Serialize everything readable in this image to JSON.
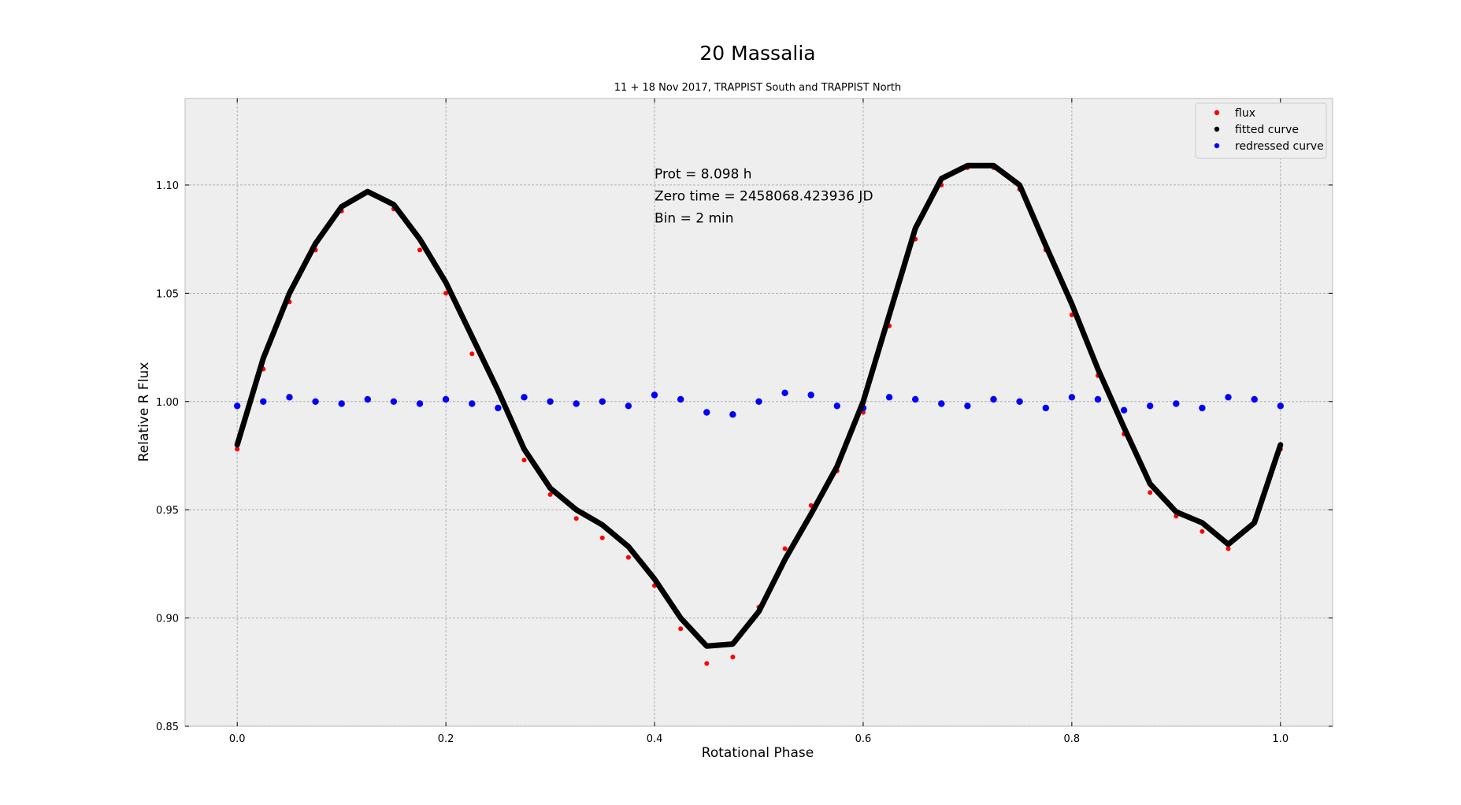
{
  "chart_data": {
    "type": "scatter",
    "title": "20 Massalia",
    "subtitle": "11 + 18 Nov 2017, TRAPPIST South and TRAPPIST North",
    "xlabel": "Rotational Phase",
    "ylabel": "Relative R Flux",
    "xlim": [
      -0.05,
      1.05
    ],
    "ylim": [
      0.85,
      1.14
    ],
    "xticks": [
      "0.0",
      "0.2",
      "0.4",
      "0.6",
      "0.8",
      "1.0"
    ],
    "xtick_values": [
      0.0,
      0.2,
      0.4,
      0.6,
      0.8,
      1.0
    ],
    "yticks": [
      "0.85",
      "0.90",
      "0.95",
      "1.00",
      "1.05",
      "1.10"
    ],
    "ytick_values": [
      0.85,
      0.9,
      0.95,
      1.0,
      1.05,
      1.1
    ],
    "grid": true,
    "legend_position": "top-right",
    "annotations": [
      "Prot = 8.098 h",
      "Zero time = 2458068.423936 JD",
      "Bin = 2 min"
    ],
    "annotation_anchor": {
      "x": 0.4,
      "y": 1.103
    },
    "colors": {
      "flux": "#ff0000",
      "fitted": "#000000",
      "redressed": "#0000ff",
      "plot_bg": "#eeeeee"
    },
    "series": [
      {
        "name": "flux",
        "color": "#ff0000",
        "marker": "dot",
        "x": [
          0.0,
          0.025,
          0.05,
          0.075,
          0.1,
          0.125,
          0.15,
          0.175,
          0.2,
          0.225,
          0.25,
          0.275,
          0.3,
          0.325,
          0.35,
          0.375,
          0.4,
          0.425,
          0.45,
          0.475,
          0.5,
          0.525,
          0.55,
          0.575,
          0.6,
          0.625,
          0.65,
          0.675,
          0.7,
          0.725,
          0.75,
          0.775,
          0.8,
          0.825,
          0.85,
          0.875,
          0.9,
          0.925,
          0.95,
          0.975,
          1.0
        ],
        "y": [
          0.978,
          1.015,
          1.046,
          1.07,
          1.088,
          1.097,
          1.089,
          1.07,
          1.05,
          1.022,
          0.997,
          0.973,
          0.957,
          0.946,
          0.937,
          0.928,
          0.915,
          0.895,
          0.879,
          0.882,
          0.905,
          0.932,
          0.952,
          0.968,
          0.995,
          1.035,
          1.075,
          1.1,
          1.108,
          1.108,
          1.098,
          1.07,
          1.04,
          1.012,
          0.985,
          0.958,
          0.947,
          0.94,
          0.932,
          0.945,
          0.978
        ]
      },
      {
        "name": "fitted curve",
        "color": "#000000",
        "marker": "dot",
        "x": [
          0.0,
          0.025,
          0.05,
          0.075,
          0.1,
          0.125,
          0.15,
          0.175,
          0.2,
          0.225,
          0.25,
          0.275,
          0.3,
          0.325,
          0.35,
          0.375,
          0.4,
          0.425,
          0.45,
          0.475,
          0.5,
          0.525,
          0.55,
          0.575,
          0.6,
          0.625,
          0.65,
          0.675,
          0.7,
          0.725,
          0.75,
          0.775,
          0.8,
          0.825,
          0.85,
          0.875,
          0.9,
          0.925,
          0.95,
          0.975,
          1.0
        ],
        "y": [
          0.98,
          1.02,
          1.05,
          1.073,
          1.09,
          1.097,
          1.091,
          1.075,
          1.055,
          1.03,
          1.005,
          0.978,
          0.96,
          0.95,
          0.943,
          0.933,
          0.918,
          0.9,
          0.887,
          0.888,
          0.903,
          0.927,
          0.948,
          0.97,
          1.0,
          1.04,
          1.08,
          1.103,
          1.109,
          1.109,
          1.1,
          1.072,
          1.045,
          1.015,
          0.988,
          0.962,
          0.949,
          0.944,
          0.934,
          0.944,
          0.98
        ]
      },
      {
        "name": "redressed curve",
        "color": "#0000ff",
        "marker": "dot",
        "x": [
          0.0,
          0.025,
          0.05,
          0.075,
          0.1,
          0.125,
          0.15,
          0.175,
          0.2,
          0.225,
          0.25,
          0.275,
          0.3,
          0.325,
          0.35,
          0.375,
          0.4,
          0.425,
          0.45,
          0.475,
          0.5,
          0.525,
          0.55,
          0.575,
          0.6,
          0.625,
          0.65,
          0.675,
          0.7,
          0.725,
          0.75,
          0.775,
          0.8,
          0.825,
          0.85,
          0.875,
          0.9,
          0.925,
          0.95,
          0.975,
          1.0
        ],
        "y": [
          0.998,
          1.0,
          1.002,
          1.0,
          0.999,
          1.001,
          1.0,
          0.999,
          1.001,
          0.999,
          0.997,
          1.002,
          1.0,
          0.999,
          1.0,
          0.998,
          1.003,
          1.001,
          0.995,
          0.994,
          1.0,
          1.004,
          1.003,
          0.998,
          0.997,
          1.002,
          1.001,
          0.999,
          0.998,
          1.001,
          1.0,
          0.997,
          1.002,
          1.001,
          0.996,
          0.998,
          0.999,
          0.997,
          1.002,
          1.001,
          0.998
        ]
      }
    ]
  }
}
